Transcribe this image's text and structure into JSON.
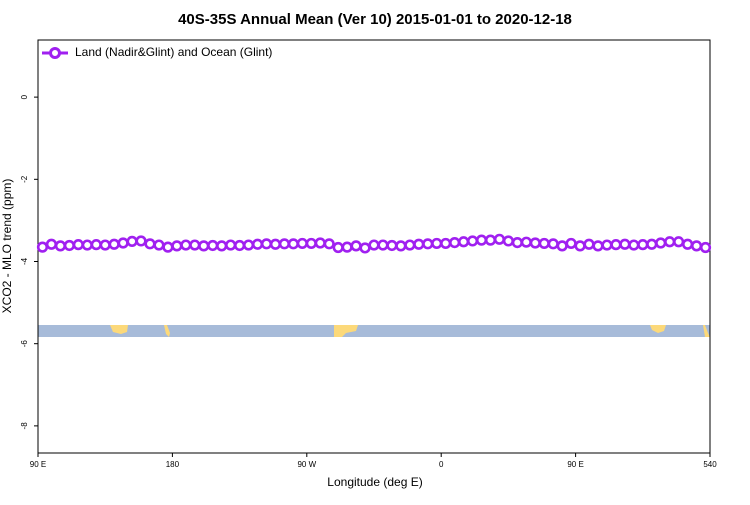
{
  "chart_data": {
    "type": "line",
    "title": "40S-35S Annual Mean (Ver 10)   2015-01-01 to 2020-12-18",
    "x_label": "Longitude (deg E)",
    "y_label": "XCO2 - MLO trend (ppm)",
    "x": [
      93,
      99,
      105,
      111,
      117,
      123,
      129,
      135,
      141,
      147,
      153,
      159,
      165,
      171,
      177,
      183,
      189,
      195,
      201,
      207,
      213,
      219,
      225,
      231,
      237,
      243,
      249,
      255,
      261,
      267,
      273,
      279,
      285,
      291,
      297,
      303,
      309,
      315,
      321,
      327,
      333,
      339,
      345,
      351,
      357,
      363,
      369,
      375,
      381,
      387,
      393,
      399,
      405,
      411,
      417,
      423,
      429,
      435,
      441,
      447,
      453,
      459,
      465,
      471,
      477,
      483,
      489,
      495,
      501,
      507,
      513,
      519,
      525,
      531,
      537
    ],
    "series": [
      {
        "name": "Land (Nadir&Glint) and Ocean (Glint)",
        "color": "#a020f0",
        "values": [
          -3.65,
          -3.58,
          -3.62,
          -3.61,
          -3.59,
          -3.6,
          -3.59,
          -3.6,
          -3.58,
          -3.55,
          -3.51,
          -3.5,
          -3.57,
          -3.6,
          -3.65,
          -3.62,
          -3.6,
          -3.6,
          -3.62,
          -3.61,
          -3.62,
          -3.6,
          -3.61,
          -3.6,
          -3.58,
          -3.57,
          -3.58,
          -3.57,
          -3.57,
          -3.56,
          -3.56,
          -3.55,
          -3.57,
          -3.66,
          -3.65,
          -3.62,
          -3.67,
          -3.6,
          -3.6,
          -3.61,
          -3.62,
          -3.6,
          -3.58,
          -3.57,
          -3.56,
          -3.56,
          -3.54,
          -3.52,
          -3.5,
          -3.48,
          -3.48,
          -3.46,
          -3.5,
          -3.54,
          -3.53,
          -3.55,
          -3.56,
          -3.57,
          -3.62,
          -3.56,
          -3.62,
          -3.58,
          -3.62,
          -3.6,
          -3.59,
          -3.58,
          -3.6,
          -3.59,
          -3.58,
          -3.55,
          -3.52,
          -3.52,
          -3.58,
          -3.62,
          -3.66
        ]
      }
    ],
    "xlim": [
      90,
      540
    ],
    "ylim": [
      -8.66,
      1.39
    ],
    "xticks": [
      {
        "value": 90,
        "label": "90 E"
      },
      180,
      {
        "value": 270,
        "label": "90 W"
      },
      {
        "value": 360,
        "label": "0"
      },
      {
        "value": 450,
        "label": "90 E"
      },
      540
    ],
    "yticks": [
      0,
      -2,
      -4,
      -6,
      -8
    ],
    "legend": "top-left"
  }
}
